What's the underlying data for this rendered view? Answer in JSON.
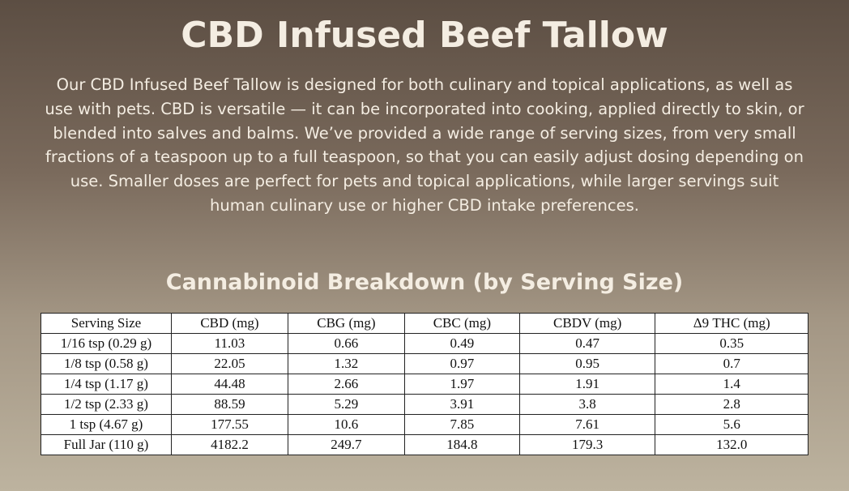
{
  "header": {
    "title": "CBD Infused Beef Tallow",
    "description": "Our CBD Infused Beef Tallow is designed for both culinary and topical applications, as well as use with pets. CBD is versatile — it can be incorporated into cooking, applied directly to skin, or blended into salves and balms. We’ve provided a wide range of serving sizes, from very small fractions of a teaspoon up to a full teaspoon, so that you can easily adjust dosing depending on use. Smaller doses are perfect for pets and topical applications, while larger servings suit human culinary use or higher CBD intake preferences."
  },
  "table": {
    "title": "Cannabinoid Breakdown (by Serving Size)",
    "columns": [
      "Serving Size",
      "CBD (mg)",
      "CBG (mg)",
      "CBC (mg)",
      "CBDV (mg)",
      "Δ9 THC (mg)"
    ],
    "rows": [
      [
        "1/16 tsp (0.29 g)",
        "11.03",
        "0.66",
        "0.49",
        "0.47",
        "0.35"
      ],
      [
        "1/8 tsp (0.58 g)",
        "22.05",
        "1.32",
        "0.97",
        "0.95",
        "0.7"
      ],
      [
        "1/4 tsp (1.17 g)",
        "44.48",
        "2.66",
        "1.97",
        "1.91",
        "1.4"
      ],
      [
        "1/2 tsp (2.33 g)",
        "88.59",
        "5.29",
        "3.91",
        "3.8",
        "2.8"
      ],
      [
        "1 tsp (4.67 g)",
        "177.55",
        "10.6",
        "7.85",
        "7.61",
        "5.6"
      ],
      [
        "Full Jar (110 g)",
        "4182.2",
        "249.7",
        "184.8",
        "179.3",
        "132.0"
      ]
    ]
  }
}
